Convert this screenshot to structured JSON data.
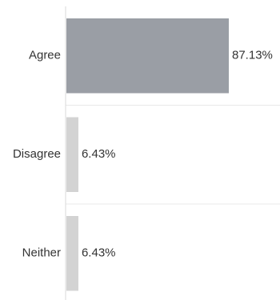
{
  "chart_data": {
    "type": "bar",
    "orientation": "horizontal",
    "title": "",
    "xlabel": "",
    "ylabel": "",
    "categories": [
      "Agree",
      "Disagree",
      "Neither"
    ],
    "values": [
      87.13,
      6.43,
      6.43
    ],
    "value_labels": [
      "87.13%",
      "6.43%",
      "6.43%"
    ],
    "xlim": [
      0,
      100
    ],
    "unit": "%",
    "grid": "horizontal separators between categories",
    "legend": "none",
    "colors": {
      "highlight_bar": "#9a9ea5",
      "bar": "#d3d3d3",
      "axis": "#d9d9d9",
      "separator": "#e8e8e8",
      "text": "#333333"
    }
  }
}
